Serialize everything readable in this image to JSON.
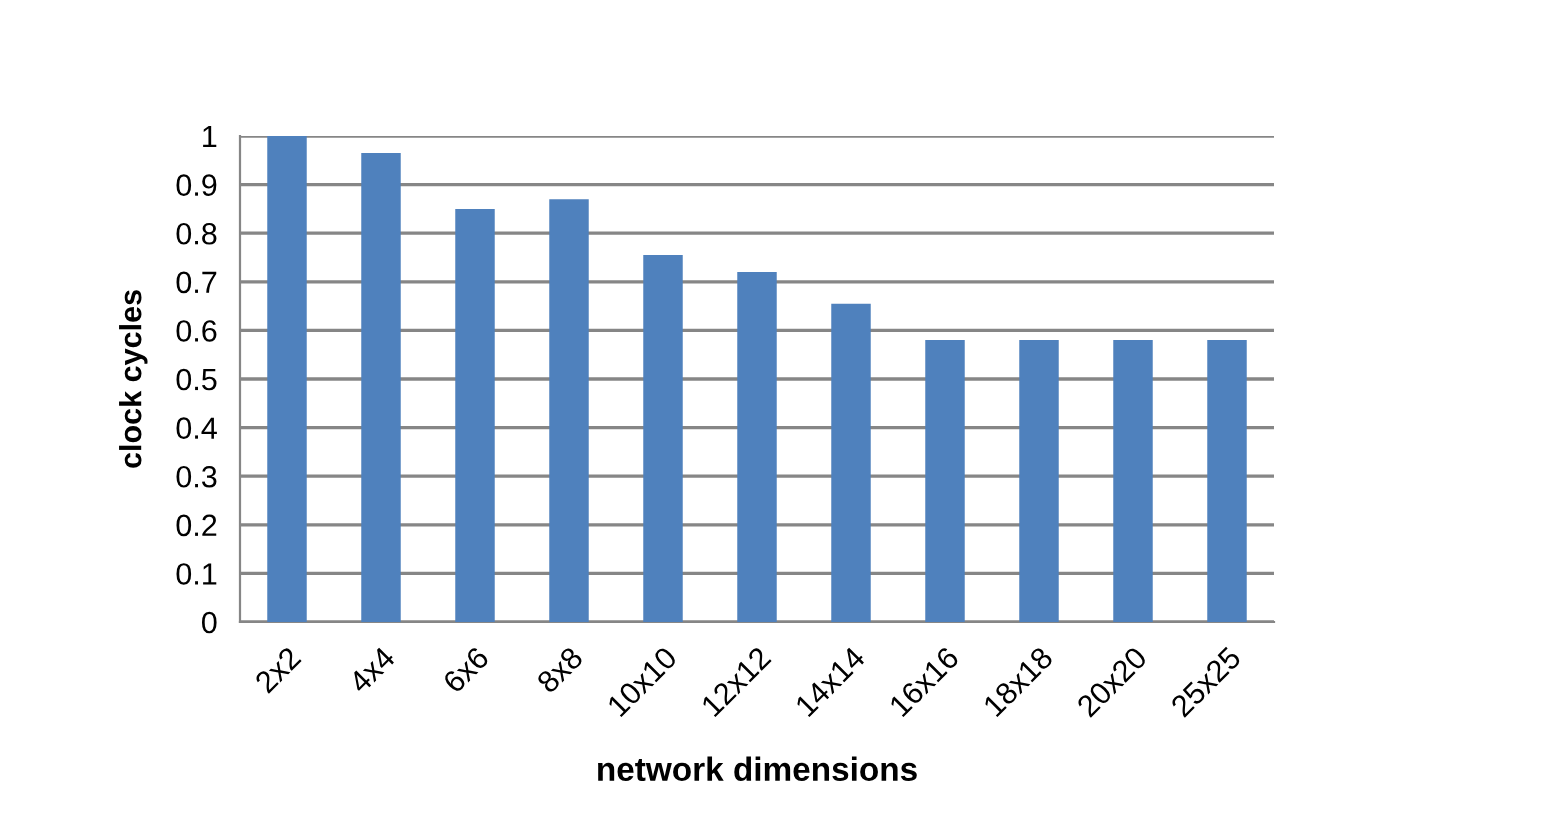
{
  "chart_data": {
    "type": "bar",
    "xlabel": "network dimensions",
    "ylabel": "clock cycles",
    "categories": [
      "2x2",
      "4x4",
      "6x6",
      "8x8",
      "10x10",
      "12x12",
      "14x14",
      "16x16",
      "18x18",
      "20x20",
      "25x25"
    ],
    "values": [
      1.0,
      0.965,
      0.85,
      0.87,
      0.755,
      0.72,
      0.655,
      0.58,
      0.58,
      0.58,
      0.58
    ],
    "color": "#4f81bd",
    "ylim": [
      0,
      1
    ],
    "yticks": [
      0,
      0.1,
      0.2,
      0.3,
      0.4,
      0.5,
      0.6,
      0.7,
      0.8,
      0.9,
      1
    ],
    "grid": "y"
  }
}
